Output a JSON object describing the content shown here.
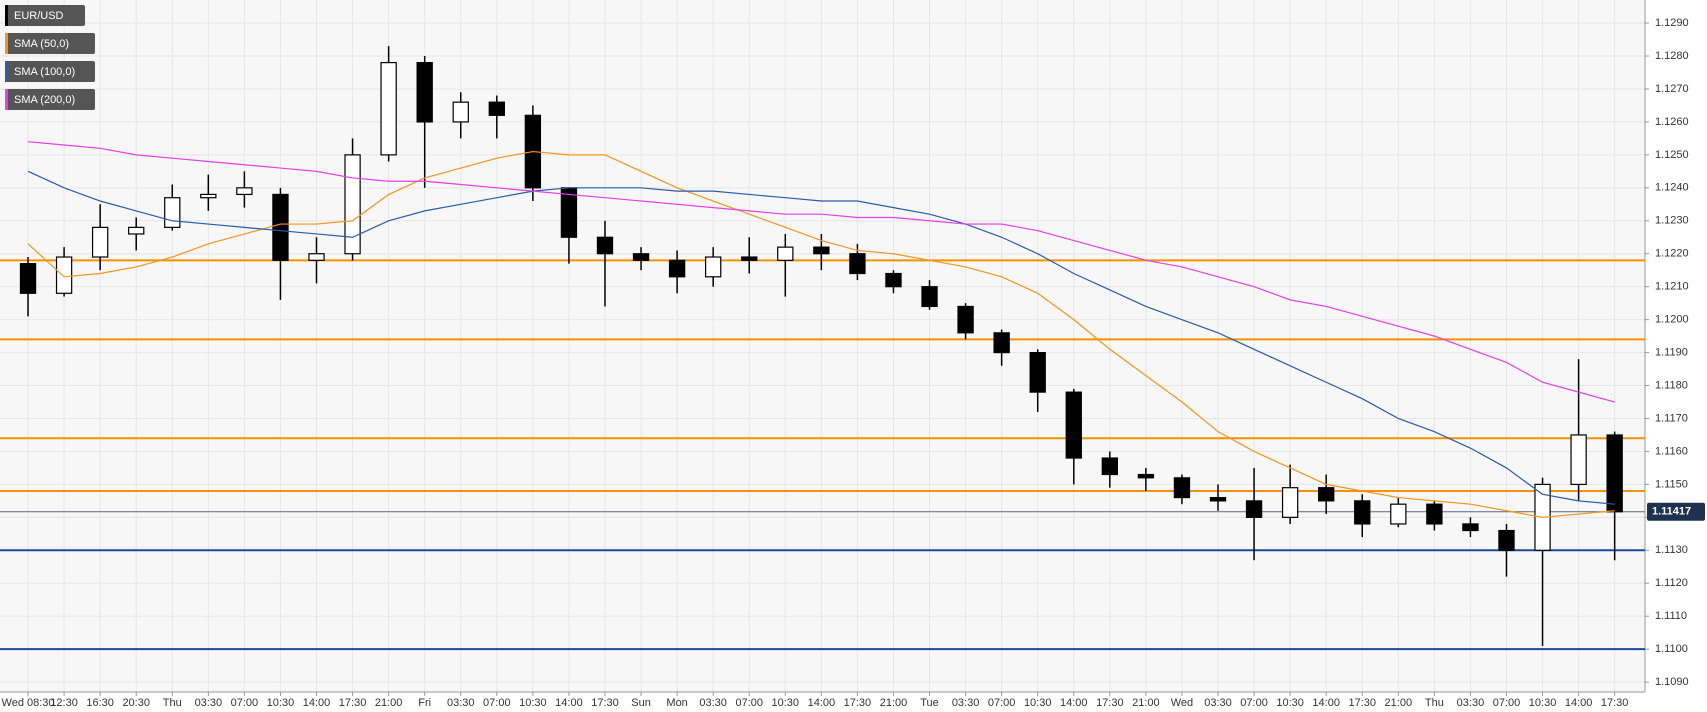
{
  "chart_data": {
    "type": "candlestick",
    "categories": [
      "Wed 08:30",
      "12:30",
      "16:30",
      "20:30",
      "Thu",
      "03:30",
      "07:00",
      "10:30",
      "14:00",
      "17:30",
      "21:00",
      "Fri",
      "03:30",
      "07:00",
      "10:30",
      "14:00",
      "17:30",
      "Sun",
      "Mon",
      "03:30",
      "07:00",
      "10:30",
      "14:00",
      "17:30",
      "21:00",
      "Tue",
      "03:30",
      "07:00",
      "10:30",
      "14:00",
      "17:30",
      "21:00",
      "Wed",
      "03:30",
      "07:00",
      "10:30",
      "14:00",
      "17:30",
      "21:00",
      "Thu",
      "03:30",
      "07:00",
      "10:30",
      "14:00",
      "17:30"
    ],
    "series": [
      {
        "name": "EUR/USD",
        "color": "#000000",
        "open": [
          1.1217,
          1.1208,
          1.1219,
          1.1226,
          1.1228,
          1.1237,
          1.1238,
          1.1238,
          1.1218,
          1.122,
          1.125,
          1.1278,
          1.126,
          1.1266,
          1.1262,
          1.124,
          1.1225,
          1.122,
          1.1218,
          1.1213,
          1.1219,
          1.1218,
          1.1222,
          1.122,
          1.1214,
          1.121,
          1.1204,
          1.1196,
          1.119,
          1.1178,
          1.1158,
          1.1153,
          1.1152,
          1.1146,
          1.1145,
          1.114,
          1.1149,
          1.1145,
          1.1138,
          1.1144,
          1.1138,
          1.1136,
          1.113,
          1.115,
          1.1165
        ],
        "high": [
          1.1219,
          1.1222,
          1.1235,
          1.1231,
          1.1241,
          1.1244,
          1.1245,
          1.124,
          1.1225,
          1.1255,
          1.1283,
          1.128,
          1.1269,
          1.1268,
          1.1265,
          1.124,
          1.123,
          1.1222,
          1.1221,
          1.1222,
          1.1225,
          1.1226,
          1.1226,
          1.1223,
          1.1215,
          1.1212,
          1.1205,
          1.1197,
          1.1191,
          1.1179,
          1.116,
          1.1155,
          1.1153,
          1.115,
          1.1155,
          1.1156,
          1.1153,
          1.1147,
          1.1146,
          1.1145,
          1.114,
          1.1138,
          1.1152,
          1.1188,
          1.1166
        ],
        "low": [
          1.1201,
          1.1207,
          1.1215,
          1.1221,
          1.1227,
          1.1233,
          1.1234,
          1.1206,
          1.1211,
          1.1218,
          1.1248,
          1.124,
          1.1255,
          1.1255,
          1.1236,
          1.1217,
          1.1204,
          1.1215,
          1.1208,
          1.121,
          1.1214,
          1.1207,
          1.1215,
          1.1212,
          1.1208,
          1.1203,
          1.1194,
          1.1186,
          1.1172,
          1.115,
          1.1149,
          1.1148,
          1.1144,
          1.1142,
          1.1127,
          1.1138,
          1.1141,
          1.1134,
          1.1137,
          1.1136,
          1.1134,
          1.1122,
          1.1101,
          1.1145,
          1.1127
        ],
        "close": [
          1.1208,
          1.1219,
          1.1228,
          1.1228,
          1.1237,
          1.1238,
          1.124,
          1.1218,
          1.122,
          1.125,
          1.1278,
          1.126,
          1.1266,
          1.1262,
          1.124,
          1.1225,
          1.122,
          1.1218,
          1.1213,
          1.1219,
          1.1218,
          1.1222,
          1.122,
          1.1214,
          1.121,
          1.1204,
          1.1196,
          1.119,
          1.1178,
          1.1158,
          1.1153,
          1.1152,
          1.1146,
          1.1145,
          1.114,
          1.1149,
          1.1145,
          1.1138,
          1.1144,
          1.1138,
          1.1136,
          1.113,
          1.115,
          1.1165,
          1.11417
        ]
      }
    ],
    "overlays": [
      {
        "name": "SMA (50,0)",
        "color": "#f7941d",
        "values": [
          1.1223,
          1.1213,
          1.1214,
          1.1216,
          1.1219,
          1.1223,
          1.1226,
          1.1229,
          1.1229,
          1.123,
          1.1238,
          1.1243,
          1.1246,
          1.1249,
          1.1251,
          1.125,
          1.125,
          1.1245,
          1.124,
          1.1236,
          1.1232,
          1.1228,
          1.1224,
          1.1221,
          1.122,
          1.1218,
          1.1216,
          1.1213,
          1.1208,
          1.12,
          1.1191,
          1.1183,
          1.1175,
          1.1166,
          1.116,
          1.1155,
          1.115,
          1.1148,
          1.1146,
          1.1145,
          1.1144,
          1.1142,
          1.114,
          1.1141,
          1.1142
        ]
      },
      {
        "name": "SMA (100,0)",
        "color": "#2a5caa",
        "values": [
          1.1245,
          1.124,
          1.1236,
          1.1233,
          1.123,
          1.1229,
          1.1228,
          1.1227,
          1.1226,
          1.1225,
          1.123,
          1.1233,
          1.1235,
          1.1237,
          1.1239,
          1.124,
          1.124,
          1.124,
          1.1239,
          1.1239,
          1.1238,
          1.1237,
          1.1236,
          1.1236,
          1.1234,
          1.1232,
          1.1229,
          1.1225,
          1.122,
          1.1214,
          1.1209,
          1.1204,
          1.12,
          1.1196,
          1.1191,
          1.1186,
          1.1181,
          1.1176,
          1.117,
          1.1166,
          1.1161,
          1.1155,
          1.1147,
          1.1145,
          1.1144
        ]
      },
      {
        "name": "SMA (200,0)",
        "color": "#e53fe5",
        "values": [
          1.1254,
          1.1253,
          1.1252,
          1.125,
          1.1249,
          1.1248,
          1.1247,
          1.1246,
          1.1245,
          1.1243,
          1.1242,
          1.1242,
          1.1241,
          1.124,
          1.1239,
          1.1238,
          1.1237,
          1.1236,
          1.1235,
          1.1234,
          1.1233,
          1.1232,
          1.1232,
          1.1231,
          1.1231,
          1.123,
          1.1229,
          1.1229,
          1.1227,
          1.1224,
          1.1221,
          1.1218,
          1.1216,
          1.1213,
          1.121,
          1.1206,
          1.1204,
          1.1201,
          1.1198,
          1.1195,
          1.1191,
          1.1187,
          1.1181,
          1.1178,
          1.1175
        ]
      }
    ],
    "levels": [
      {
        "value": 1.1218,
        "color": "#f39200"
      },
      {
        "value": 1.1194,
        "color": "#f39200"
      },
      {
        "value": 1.1164,
        "color": "#f39200"
      },
      {
        "value": 1.1148,
        "color": "#f39200"
      },
      {
        "value": 1.113,
        "color": "#1a4b9b"
      },
      {
        "value": 1.11,
        "color": "#1a4b9b"
      }
    ],
    "last_price": 1.11417,
    "ylim": [
      1.1087,
      1.1297
    ],
    "yticks": [
      {
        "value": 1.109,
        "label": "1.1090"
      },
      {
        "value": 1.11,
        "label": "1.1100"
      },
      {
        "value": 1.111,
        "label": "1.1110"
      },
      {
        "value": 1.112,
        "label": "1.1120"
      },
      {
        "value": 1.113,
        "label": "1.1130"
      },
      {
        "value": 1.114,
        "label": "1.1140"
      },
      {
        "value": 1.115,
        "label": "1.1150"
      },
      {
        "value": 1.116,
        "label": "1.1160"
      },
      {
        "value": 1.117,
        "label": "1.1170"
      },
      {
        "value": 1.118,
        "label": "1.1180"
      },
      {
        "value": 1.119,
        "label": "1.1190"
      },
      {
        "value": 1.12,
        "label": "1.1200"
      },
      {
        "value": 1.121,
        "label": "1.1210"
      },
      {
        "value": 1.122,
        "label": "1.1220"
      },
      {
        "value": 1.123,
        "label": "1.1230"
      },
      {
        "value": 1.124,
        "label": "1.1240"
      },
      {
        "value": 1.125,
        "label": "1.1250"
      },
      {
        "value": 1.126,
        "label": "1.1260"
      },
      {
        "value": 1.127,
        "label": "1.1270"
      },
      {
        "value": 1.128,
        "label": "1.1280"
      },
      {
        "value": 1.129,
        "label": "1.1290"
      }
    ],
    "grid": true
  }
}
